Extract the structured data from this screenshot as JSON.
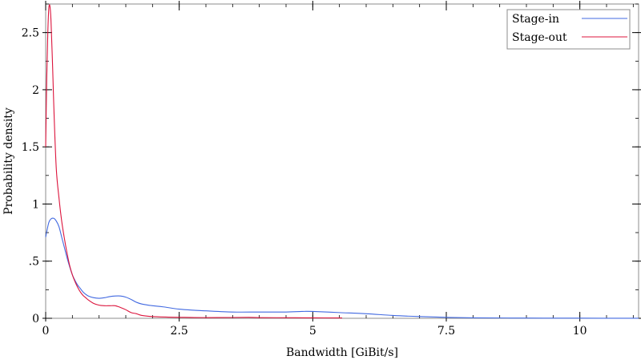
{
  "chart_data": {
    "type": "line",
    "title": "",
    "xlabel": "Bandwidth [GiBit/s]",
    "ylabel": "Probability density",
    "xlim": [
      0,
      11.1
    ],
    "ylim": [
      0,
      2.75
    ],
    "x_ticks": [
      {
        "value": 0,
        "label": "0"
      },
      {
        "value": 2.5,
        "label": "2.5"
      },
      {
        "value": 5,
        "label": "5"
      },
      {
        "value": 7.5,
        "label": "7.5"
      },
      {
        "value": 10,
        "label": "10"
      }
    ],
    "y_ticks": [
      {
        "value": 0,
        "label": "0"
      },
      {
        "value": 0.5,
        "label": ".5"
      },
      {
        "value": 1,
        "label": "1"
      },
      {
        "value": 1.5,
        "label": "1.5"
      },
      {
        "value": 2,
        "label": "2"
      },
      {
        "value": 2.5,
        "label": "2.5"
      }
    ],
    "x_minor_step": 0.5,
    "y_minor_step": 0.25,
    "grid": false,
    "legend_position": "top-right",
    "series": [
      {
        "name": "Stage-in",
        "color": "#4169e1",
        "points": [
          [
            0.0,
            0.71
          ],
          [
            0.03,
            0.78
          ],
          [
            0.06,
            0.84
          ],
          [
            0.1,
            0.87
          ],
          [
            0.15,
            0.875
          ],
          [
            0.2,
            0.85
          ],
          [
            0.25,
            0.8
          ],
          [
            0.3,
            0.71
          ],
          [
            0.35,
            0.62
          ],
          [
            0.4,
            0.53
          ],
          [
            0.45,
            0.45
          ],
          [
            0.5,
            0.38
          ],
          [
            0.55,
            0.33
          ],
          [
            0.6,
            0.29
          ],
          [
            0.65,
            0.26
          ],
          [
            0.7,
            0.23
          ],
          [
            0.75,
            0.21
          ],
          [
            0.8,
            0.195
          ],
          [
            0.9,
            0.18
          ],
          [
            1.0,
            0.175
          ],
          [
            1.1,
            0.18
          ],
          [
            1.2,
            0.19
          ],
          [
            1.3,
            0.195
          ],
          [
            1.4,
            0.195
          ],
          [
            1.5,
            0.185
          ],
          [
            1.6,
            0.165
          ],
          [
            1.7,
            0.14
          ],
          [
            1.8,
            0.125
          ],
          [
            2.0,
            0.11
          ],
          [
            2.2,
            0.1
          ],
          [
            2.5,
            0.08
          ],
          [
            2.8,
            0.07
          ],
          [
            3.0,
            0.065
          ],
          [
            3.5,
            0.055
          ],
          [
            4.0,
            0.055
          ],
          [
            4.5,
            0.055
          ],
          [
            4.8,
            0.06
          ],
          [
            5.0,
            0.06
          ],
          [
            5.5,
            0.05
          ],
          [
            6.0,
            0.04
          ],
          [
            6.5,
            0.025
          ],
          [
            7.0,
            0.015
          ],
          [
            7.5,
            0.008
          ],
          [
            8.0,
            0.004
          ],
          [
            9.0,
            0.002
          ],
          [
            10.0,
            0.001
          ],
          [
            11.1,
            0.0005
          ]
        ]
      },
      {
        "name": "Stage-out",
        "color": "#dc143c",
        "points": [
          [
            0.0,
            1.5
          ],
          [
            0.02,
            2.1
          ],
          [
            0.04,
            2.5
          ],
          [
            0.06,
            2.72
          ],
          [
            0.08,
            2.73
          ],
          [
            0.1,
            2.6
          ],
          [
            0.13,
            2.2
          ],
          [
            0.16,
            1.75
          ],
          [
            0.2,
            1.3
          ],
          [
            0.25,
            1.05
          ],
          [
            0.3,
            0.85
          ],
          [
            0.35,
            0.7
          ],
          [
            0.4,
            0.57
          ],
          [
            0.45,
            0.46
          ],
          [
            0.5,
            0.38
          ],
          [
            0.55,
            0.32
          ],
          [
            0.6,
            0.27
          ],
          [
            0.65,
            0.23
          ],
          [
            0.7,
            0.2
          ],
          [
            0.75,
            0.18
          ],
          [
            0.8,
            0.16
          ],
          [
            0.9,
            0.13
          ],
          [
            1.0,
            0.115
          ],
          [
            1.1,
            0.11
          ],
          [
            1.2,
            0.11
          ],
          [
            1.3,
            0.11
          ],
          [
            1.4,
            0.095
          ],
          [
            1.5,
            0.075
          ],
          [
            1.6,
            0.05
          ],
          [
            1.7,
            0.04
          ],
          [
            1.8,
            0.025
          ],
          [
            2.0,
            0.015
          ],
          [
            2.3,
            0.01
          ],
          [
            2.6,
            0.008
          ],
          [
            3.0,
            0.006
          ],
          [
            3.5,
            0.007
          ],
          [
            3.8,
            0.008
          ],
          [
            4.0,
            0.006
          ],
          [
            4.5,
            0.005
          ],
          [
            5.0,
            0.004
          ],
          [
            5.55,
            0.003
          ]
        ]
      }
    ]
  }
}
